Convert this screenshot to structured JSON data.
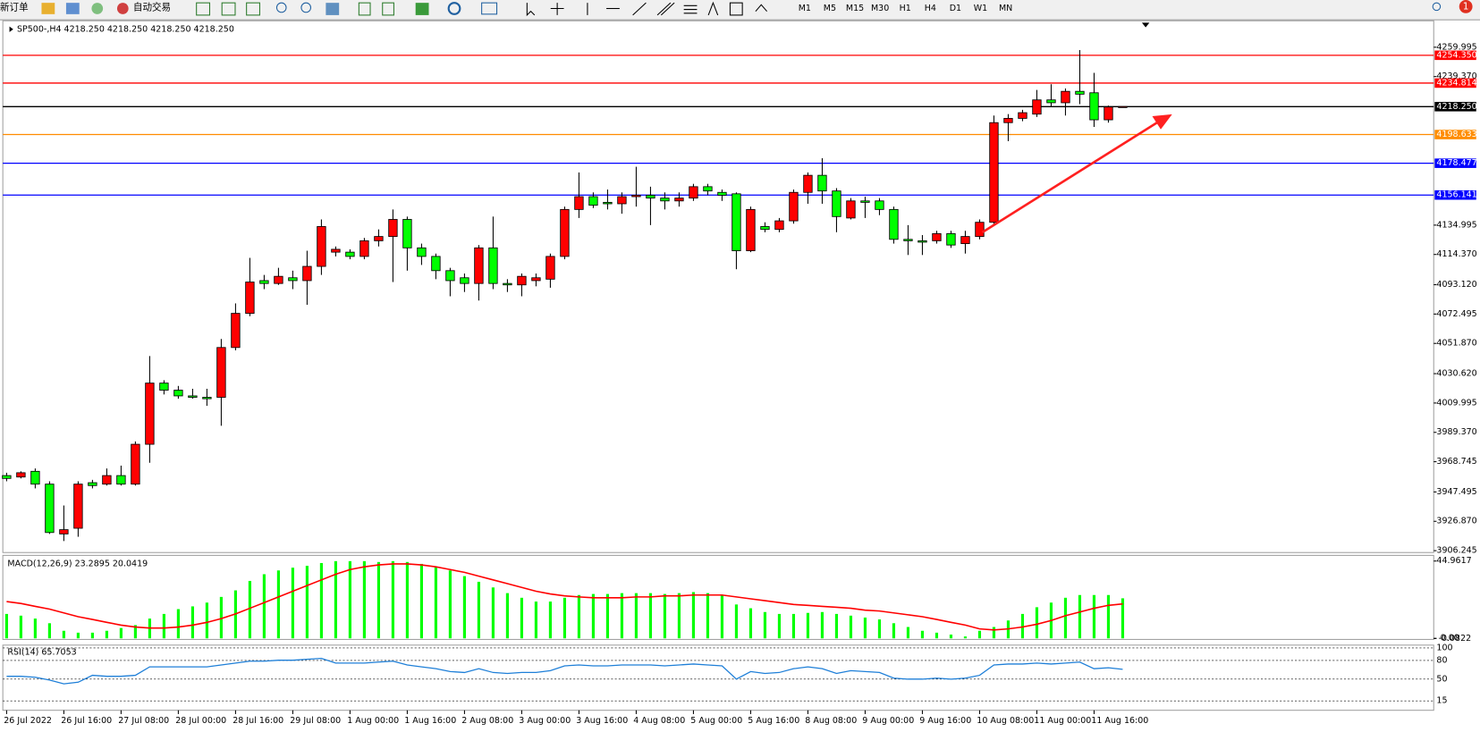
{
  "toolbar": {
    "new_order": "新订单",
    "auto_trading": "自动交易",
    "timeframes": [
      "M1",
      "M5",
      "M15",
      "M30",
      "H1",
      "H4",
      "D1",
      "W1",
      "MN"
    ],
    "badge": "1"
  },
  "chart_data": [
    {
      "type": "candlestick",
      "title": "SP500-,H4  4218.250 4218.250 4218.250 4218.250",
      "categories": [
        "26 Jul 2022",
        null,
        null,
        null,
        "26 Jul 16:00",
        null,
        null,
        null,
        "27 Jul 08:00",
        null,
        null,
        null,
        "28 Jul 00:00",
        null,
        null,
        null,
        "28 Jul 16:00",
        null,
        null,
        null,
        "29 Jul 08:00",
        null,
        null,
        null,
        "1 Aug 00:00",
        null,
        null,
        null,
        "1 Aug 16:00",
        null,
        null,
        null,
        "2 Aug 08:00",
        null,
        null,
        null,
        "3 Aug 00:00",
        null,
        null,
        null,
        "3 Aug 16:00",
        null,
        null,
        null,
        "4 Aug 08:00",
        null,
        null,
        null,
        "5 Aug 00:00",
        null,
        null,
        null,
        "5 Aug 16:00",
        null,
        null,
        null,
        "8 Aug 08:00",
        null,
        null,
        null,
        "9 Aug 00:00",
        null,
        null,
        null,
        "9 Aug 16:00",
        null,
        null,
        null,
        "10 Aug 08:00",
        null,
        null,
        null,
        "11 Aug 00:00",
        null,
        null,
        null,
        "11 Aug 16:00",
        null,
        null
      ],
      "open": [
        3959,
        3958,
        3962,
        3953,
        3918,
        3922,
        3954,
        3953,
        3959,
        3953,
        3981,
        4024,
        4019,
        4015,
        4014,
        4014,
        4049,
        4073,
        4096,
        4094,
        4098,
        4096,
        4106,
        4116,
        4116,
        4113,
        4124,
        4127,
        4139,
        4119,
        4113,
        4103,
        4098,
        4094,
        4119,
        4094,
        4093,
        4096,
        4097,
        4113,
        4146,
        4155,
        4151,
        4150,
        4155,
        4156,
        4154,
        4152,
        4154,
        4162,
        4158,
        4157,
        4117,
        4134,
        4132,
        4138,
        4158,
        4170,
        4159,
        4140,
        4152,
        4152,
        4146,
        4125,
        4124,
        4124,
        4129,
        4122,
        4127,
        4137,
        4207,
        4210,
        4213,
        4223,
        4221,
        4229,
        4228,
        4209,
        4218.25
      ],
      "high": [
        3961,
        3962,
        3964,
        3955,
        3938,
        3955,
        3956,
        3964,
        3966,
        3983,
        4043,
        4026,
        4022,
        4020,
        4020,
        4055,
        4080,
        4112,
        4100,
        4105,
        4103,
        4117,
        4139,
        4120,
        4118,
        4126,
        4132,
        4146,
        4141,
        4122,
        4115,
        4105,
        4101,
        4121,
        4141,
        4097,
        4101,
        4101,
        4115,
        4148,
        4172,
        4158,
        4160,
        4158,
        4176,
        4162,
        4158,
        4158,
        4164,
        4164,
        4160,
        4158,
        4148,
        4137,
        4140,
        4160,
        4172,
        4182,
        4161,
        4154,
        4155,
        4154,
        4148,
        4135,
        4128,
        4131,
        4131,
        4131,
        4139,
        4212,
        4213,
        4216,
        4230,
        4234,
        4231,
        4258,
        4242,
        4219,
        4218.25
      ],
      "low": [
        3955,
        3957,
        3950,
        3918,
        3913,
        3916,
        3950,
        3952,
        3952,
        3952,
        3968,
        4016,
        4013,
        4013,
        4008,
        3994,
        4047,
        4071,
        4090,
        4093,
        4090,
        4079,
        4100,
        4113,
        4111,
        4111,
        4120,
        4095,
        4103,
        4107,
        4097,
        4085,
        4088,
        4082,
        4090,
        4088,
        4085,
        4092,
        4091,
        4111,
        4140,
        4147,
        4146,
        4143,
        4148,
        4135,
        4146,
        4148,
        4152,
        4156,
        4152,
        4104,
        4116,
        4130,
        4130,
        4136,
        4150,
        4150,
        4130,
        4139,
        4140,
        4142,
        4122,
        4114,
        4114,
        4122,
        4119,
        4115,
        4125,
        4135,
        4194,
        4208,
        4211,
        4218,
        4212,
        4220,
        4204,
        4207,
        4218.25
      ],
      "close": [
        3957,
        3961,
        3953,
        3919,
        3921,
        3953,
        3952,
        3959,
        3953,
        3981,
        4024,
        4019,
        4015,
        4014,
        4013,
        4049,
        4073,
        4095,
        4094,
        4099,
        4096,
        4106,
        4134,
        4118,
        4113,
        4124,
        4127,
        4139,
        4119,
        4113,
        4103,
        4096,
        4094,
        4119,
        4094,
        4093,
        4099,
        4098,
        4113,
        4146,
        4155,
        4149,
        4150,
        4155,
        4156,
        4154,
        4152,
        4154,
        4162,
        4159,
        4156,
        4117,
        4146,
        4132,
        4138,
        4158,
        4170,
        4159,
        4141,
        4152,
        4151,
        4146,
        4125,
        4124,
        4123,
        4129,
        4121,
        4127,
        4137,
        4207,
        4210,
        4214,
        4223,
        4221,
        4229,
        4227,
        4209,
        4218,
        4218.25
      ],
      "up_color": "#ff0000",
      "down_color": "#00ff00",
      "outline_color": "#000000",
      "ylim": [
        3904.92,
        4278.58
      ],
      "yticks": [
        3906.245,
        {
          "value": 3926.87,
          "label": "3926.870"
        },
        3947.495,
        3968.745,
        {
          "value": 3989.37,
          "label": "3989.370"
        },
        4009.995,
        {
          "value": 4030.62,
          "label": "4030.620"
        },
        {
          "value": 4051.87,
          "label": "4051.870"
        },
        4072.495,
        {
          "value": 4093.12,
          "label": "4093.120"
        },
        {
          "value": 4114.37,
          "label": "4114.370"
        },
        4134.995,
        {
          "value": 4239.37,
          "label": "4239.370"
        },
        4259.995
      ],
      "levels": [
        {
          "value": 4254.35,
          "label": "4254.350",
          "color": "#ff0000"
        },
        {
          "value": 4234.814,
          "color": "#ff0000"
        },
        {
          "value": 4218.25,
          "label": "4218.250",
          "color": "#000000"
        },
        {
          "value": 4198.633,
          "color": "#ff8c00"
        },
        {
          "value": 4178.477,
          "color": "#0000ff"
        },
        {
          "value": 4156.141,
          "color": "#0000ff"
        }
      ]
    },
    {
      "type": "macd",
      "title": "MACD(12,26,9) 23.2895 20.0419",
      "histogram": {
        "color": "#00ff00",
        "values": [
          14.2,
          13.2,
          11.5,
          8.8,
          4.4,
          3.3,
          3.3,
          4.4,
          6.0,
          7.7,
          11.5,
          14.2,
          17.0,
          18.6,
          20.8,
          24.1,
          27.9,
          33.4,
          37.3,
          39.5,
          41.1,
          42.2,
          43.8,
          44.9,
          44.9,
          44.9,
          44.4,
          44.9,
          44.4,
          43.3,
          41.6,
          39.5,
          36.2,
          32.9,
          29.6,
          26.3,
          23.6,
          21.4,
          21.4,
          23.6,
          25.2,
          25.8,
          25.8,
          26.3,
          26.3,
          26.3,
          25.8,
          26.3,
          26.9,
          26.3,
          25.2,
          19.7,
          17.5,
          15.3,
          14.2,
          14.2,
          14.8,
          15.3,
          14.2,
          13.2,
          12.1,
          11.0,
          8.8,
          6.6,
          4.4,
          3.3,
          2.2,
          1.1,
          4.4,
          6.6,
          10.4,
          14.2,
          18.1,
          20.8,
          23.6,
          25.2,
          25.2,
          25.2,
          23.2895
        ]
      },
      "signal": {
        "color": "#ff0000",
        "values": [
          21.4,
          20.3,
          18.6,
          17.0,
          14.8,
          12.6,
          11.0,
          9.3,
          7.7,
          6.6,
          6.0,
          6.0,
          6.6,
          7.7,
          9.3,
          11.5,
          14.2,
          17.5,
          20.8,
          24.1,
          27.4,
          30.7,
          34.0,
          37.3,
          40.0,
          41.6,
          42.7,
          43.3,
          43.3,
          42.7,
          41.6,
          40.0,
          38.4,
          36.2,
          34.0,
          31.8,
          29.6,
          27.4,
          25.8,
          24.7,
          24.1,
          23.6,
          23.6,
          23.6,
          24.1,
          24.1,
          24.7,
          24.7,
          25.2,
          25.2,
          25.2,
          24.1,
          23.0,
          21.9,
          20.8,
          19.7,
          19.2,
          18.6,
          18.1,
          17.5,
          16.4,
          15.9,
          14.8,
          13.7,
          12.6,
          11.0,
          9.3,
          7.7,
          5.5,
          4.9,
          5.5,
          6.6,
          8.2,
          10.4,
          13.2,
          15.3,
          17.5,
          19.2,
          20.0419
        ]
      },
      "ylim": [
        -0.0822,
        44.9617
      ],
      "yticks": [
        44.9617,
        -0.0822,
        {
          "value": 0,
          "label": "0.00"
        }
      ]
    },
    {
      "type": "line",
      "title": "RSI(14) 65.7053",
      "color": "#1e7fd8",
      "values": [
        54.5,
        54.5,
        53,
        48.5,
        42.4,
        45,
        56.1,
        54.5,
        54.5,
        56.1,
        69.7,
        69.7,
        69.7,
        69.7,
        69.7,
        72.7,
        75.8,
        78.8,
        78.8,
        80.3,
        80.3,
        81.8,
        83.3,
        75.8,
        75.8,
        75.8,
        77.3,
        78.8,
        72.7,
        69.7,
        66.7,
        62.1,
        60.6,
        66.7,
        60.6,
        59.1,
        60.6,
        60.6,
        63.6,
        71.2,
        72.7,
        71.2,
        71.2,
        72.7,
        72.7,
        72.7,
        71.2,
        72.7,
        74.2,
        72.7,
        71.2,
        50,
        62.1,
        59.1,
        60.6,
        66.7,
        69.7,
        66.7,
        59.1,
        63.6,
        62.1,
        60.6,
        51.5,
        50,
        50,
        51.5,
        50,
        51.5,
        56.1,
        72.7,
        74.2,
        74.2,
        75.8,
        74.2,
        75.8,
        77.3,
        66.7,
        68.2,
        65.7053
      ],
      "ylim": [
        0,
        100
      ],
      "yticks": [
        100,
        80,
        50,
        15
      ],
      "grid": "dashed"
    }
  ]
}
